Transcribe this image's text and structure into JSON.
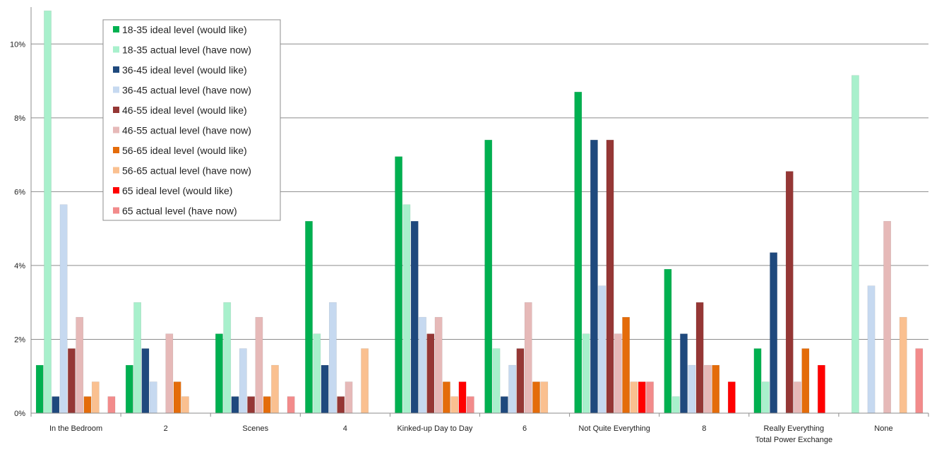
{
  "chart_data": {
    "type": "bar",
    "title": "",
    "xlabel": "",
    "ylabel": "",
    "ylim": [
      0,
      11
    ],
    "yticks": [
      "0%",
      "2%",
      "4%",
      "6%",
      "8%",
      "10%"
    ],
    "ytick_values": [
      0,
      2,
      4,
      6,
      8,
      10
    ],
    "grid": true,
    "legend_position": "top-left",
    "categories": [
      "In the Bedroom",
      "2",
      "Scenes",
      "4",
      "Kinked-up Day to Day",
      "6",
      "Not Quite Everything",
      "8",
      "Really Everything Total Power Exchange",
      "None"
    ],
    "series": [
      {
        "name": "18-35 ideal level (would like)",
        "color": "#00b050",
        "values": [
          1.3,
          1.3,
          2.15,
          5.2,
          6.95,
          7.4,
          8.7,
          3.9,
          1.75,
          0
        ]
      },
      {
        "name": "18-35 actual level (have now)",
        "color": "#a8f0cc",
        "values": [
          10.9,
          3.0,
          3.0,
          2.15,
          5.65,
          1.75,
          2.15,
          0.45,
          0.85,
          9.15
        ]
      },
      {
        "name": "36-45 ideal level (would like)",
        "color": "#1f497d",
        "values": [
          0.45,
          1.75,
          0.45,
          1.3,
          5.2,
          0.45,
          7.4,
          2.15,
          4.35,
          0
        ]
      },
      {
        "name": "36-45 actual level (have now)",
        "color": "#c6d9f0",
        "values": [
          5.65,
          0.85,
          1.75,
          3.0,
          2.6,
          1.3,
          3.45,
          1.3,
          0,
          3.45
        ]
      },
      {
        "name": "46-55 ideal level (would like)",
        "color": "#953735",
        "values": [
          1.75,
          0,
          0.45,
          0.45,
          2.15,
          1.75,
          7.4,
          3.0,
          6.55,
          0
        ]
      },
      {
        "name": "46-55 actual level (have now)",
        "color": "#e6b9b8",
        "values": [
          2.6,
          2.15,
          2.6,
          0.85,
          2.6,
          3.0,
          2.15,
          1.3,
          0.85,
          5.2
        ]
      },
      {
        "name": "56-65 ideal level (would like)",
        "color": "#e46c0a",
        "values": [
          0.45,
          0.85,
          0.45,
          0,
          0.85,
          0.85,
          2.6,
          1.3,
          1.75,
          0
        ]
      },
      {
        "name": "56-65 actual level (have now)",
        "color": "#fac090",
        "values": [
          0.85,
          0.45,
          1.3,
          1.75,
          0.45,
          0.85,
          0.85,
          0,
          0,
          2.6
        ]
      },
      {
        "name": "65 ideal level (would like)",
        "color": "#ff0000",
        "values": [
          0,
          0,
          0,
          0,
          0.85,
          0,
          0.85,
          0.85,
          1.3,
          0
        ]
      },
      {
        "name": "65 actual level (have now)",
        "color": "#f28b8b",
        "values": [
          0.45,
          0,
          0.45,
          0,
          0.45,
          0,
          0.85,
          0,
          0,
          1.75
        ]
      }
    ]
  }
}
